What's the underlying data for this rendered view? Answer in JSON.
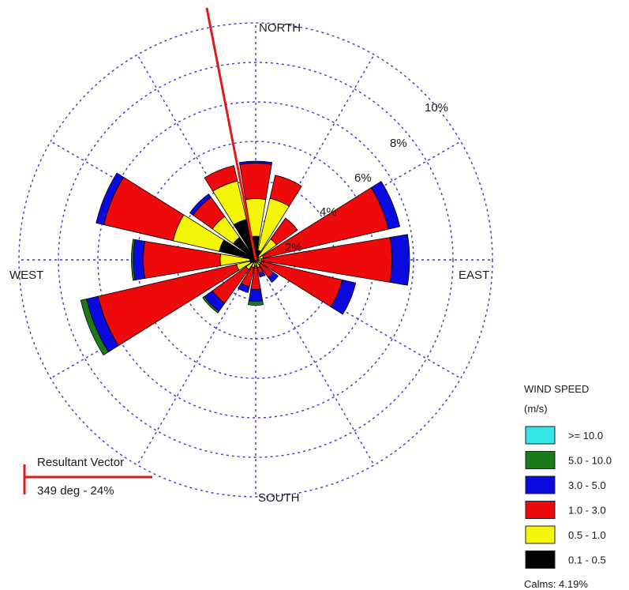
{
  "chart_data": {
    "type": "wind-rose",
    "direction_labels": {
      "north": "NORTH",
      "south": "SOUTH",
      "east": "EAST",
      "west": "WEST"
    },
    "ring_labels": [
      "2%",
      "4%",
      "6%",
      "8%",
      "10%"
    ],
    "ring_values": [
      2,
      4,
      6,
      8,
      10,
      12
    ],
    "legend": {
      "title": "WIND SPEED",
      "units": "(m/s)",
      "items": [
        {
          "label": ">= 10.0",
          "color": "#33e5e5"
        },
        {
          "label": "5.0 - 10.0",
          "color": "#1a7a1a"
        },
        {
          "label": "3.0 - 5.0",
          "color": "#0a0adf"
        },
        {
          "label": "1.0 - 3.0",
          "color": "#ee0a0a"
        },
        {
          "label": "0.5 - 1.0",
          "color": "#f5f50a"
        },
        {
          "label": "0.1 - 0.5",
          "color": "#000000"
        }
      ],
      "calms": "Calms: 4.19%"
    },
    "resultant_vector": {
      "label": "Resultant Vector",
      "value": "349 deg - 24%",
      "direction_deg": 349
    },
    "bins_order": [
      "0.1 - 0.5",
      "0.5 - 1.0",
      "1.0 - 3.0",
      "3.0 - 5.0",
      "5.0 - 10.0",
      ">= 10.0"
    ],
    "directions": [
      {
        "deg": 0,
        "values": [
          1.2,
          1.9,
          1.8,
          0.1,
          0.0,
          0.0
        ]
      },
      {
        "deg": 22.5,
        "values": [
          0.5,
          2.7,
          1.2,
          0.0,
          0.0,
          0.0
        ]
      },
      {
        "deg": 45,
        "values": [
          0.2,
          1.1,
          1.3,
          0.0,
          0.0,
          0.0
        ]
      },
      {
        "deg": 67.5,
        "values": [
          0.0,
          0.4,
          6.5,
          0.6,
          0.0,
          0.0
        ]
      },
      {
        "deg": 90,
        "values": [
          0.0,
          0.3,
          6.6,
          0.9,
          0.0,
          0.0
        ]
      },
      {
        "deg": 112.5,
        "values": [
          0.1,
          0.2,
          4.2,
          0.7,
          0.0,
          0.0
        ]
      },
      {
        "deg": 135,
        "values": [
          0.1,
          0.2,
          0.8,
          0.3,
          0.0,
          0.0
        ]
      },
      {
        "deg": 157.5,
        "values": [
          0.1,
          0.3,
          0.3,
          0.2,
          0.0,
          0.0
        ]
      },
      {
        "deg": 180,
        "values": [
          0.1,
          0.2,
          1.2,
          0.6,
          0.2,
          0.0
        ]
      },
      {
        "deg": 202.5,
        "values": [
          0.1,
          0.3,
          1.0,
          0.3,
          0.0,
          0.0
        ]
      },
      {
        "deg": 225,
        "values": [
          0.2,
          0.4,
          2.1,
          0.5,
          0.1,
          0.0
        ]
      },
      {
        "deg": 247.5,
        "values": [
          0.3,
          0.7,
          7.2,
          0.6,
          0.3,
          0.0
        ]
      },
      {
        "deg": 270,
        "values": [
          0.3,
          1.5,
          3.9,
          0.5,
          0.1,
          0.0
        ]
      },
      {
        "deg": 292.5,
        "values": [
          1.9,
          2.4,
          3.6,
          0.4,
          0.0,
          0.0
        ]
      },
      {
        "deg": 315,
        "values": [
          1.4,
          1.3,
          1.2,
          0.2,
          0.0,
          0.0
        ]
      },
      {
        "deg": 337.5,
        "values": [
          2.1,
          2.0,
          0.8,
          0.0,
          0.0,
          0.0
        ]
      }
    ]
  }
}
